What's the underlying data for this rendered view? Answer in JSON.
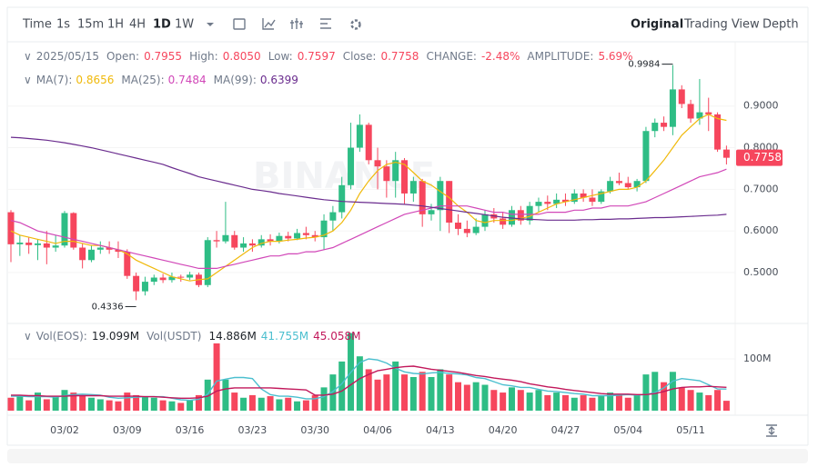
{
  "toolbar": {
    "intervals": [
      "Time",
      "1s",
      "15m",
      "1H",
      "4H",
      "1D",
      "1W"
    ],
    "views": [
      "Original",
      "Trading View",
      "Depth"
    ]
  },
  "chart_data": {
    "type": "candlestick",
    "watermark": "BINANCE",
    "legend": {
      "date": "2025/05/15",
      "items": [
        {
          "label": "Open:",
          "value": "0.7955"
        },
        {
          "label": "High:",
          "value": "0.8050"
        },
        {
          "label": "Low:",
          "value": "0.7597"
        },
        {
          "label": "Close:",
          "value": "0.7758"
        },
        {
          "label": "CHANGE:",
          "value": "-2.48%"
        },
        {
          "label": "AMPLITUDE:",
          "value": "5.69%"
        }
      ]
    },
    "categories": [
      null,
      null,
      null,
      null,
      null,
      null,
      "03/02",
      null,
      null,
      null,
      null,
      null,
      null,
      "03/09",
      null,
      null,
      null,
      null,
      null,
      null,
      "03/16",
      null,
      null,
      null,
      null,
      null,
      null,
      "03/23",
      null,
      null,
      null,
      null,
      null,
      null,
      "03/30",
      null,
      null,
      null,
      null,
      null,
      null,
      "04/06",
      null,
      null,
      null,
      null,
      null,
      null,
      "04/13",
      null,
      null,
      null,
      null,
      null,
      null,
      "04/20",
      null,
      null,
      null,
      null,
      null,
      null,
      "04/27",
      null,
      null,
      null,
      null,
      null,
      null,
      "05/04",
      null,
      null,
      null,
      null,
      null,
      null,
      "05/11",
      null,
      null,
      null,
      null
    ],
    "open": [
      0.645,
      0.568,
      0.572,
      0.566,
      0.57,
      0.56,
      0.565,
      0.643,
      0.56,
      0.53,
      0.555,
      0.56,
      0.555,
      0.55,
      0.492,
      0.455,
      0.478,
      0.488,
      0.482,
      0.49,
      0.488,
      0.495,
      0.47,
      0.578,
      0.575,
      0.59,
      0.56,
      0.57,
      0.565,
      0.58,
      0.575,
      0.588,
      0.582,
      0.595,
      0.59,
      0.585,
      0.625,
      0.645,
      0.71,
      0.8,
      0.855,
      0.77,
      0.755,
      0.72,
      0.77,
      0.69,
      0.72,
      0.64,
      0.65,
      0.72,
      0.62,
      0.605,
      0.595,
      0.61,
      0.64,
      0.63,
      0.615,
      0.65,
      0.625,
      0.66,
      0.67,
      0.665,
      0.675,
      0.67,
      0.69,
      0.68,
      0.67,
      0.695,
      0.72,
      0.715,
      0.705,
      0.72,
      0.84,
      0.86,
      0.85,
      0.94,
      0.905,
      0.87,
      0.885,
      0.88,
      0.7955
    ],
    "high": [
      0.65,
      0.59,
      0.585,
      0.58,
      0.6,
      0.59,
      0.648,
      0.645,
      0.57,
      0.565,
      0.575,
      0.575,
      0.575,
      0.556,
      0.5,
      0.49,
      0.495,
      0.497,
      0.5,
      0.495,
      0.502,
      0.5,
      0.585,
      0.6,
      0.67,
      0.6,
      0.585,
      0.58,
      0.59,
      0.592,
      0.596,
      0.598,
      0.605,
      0.61,
      0.6,
      0.64,
      0.66,
      0.73,
      0.86,
      0.88,
      0.86,
      0.8,
      0.77,
      0.79,
      0.775,
      0.73,
      0.725,
      0.665,
      0.73,
      0.72,
      0.64,
      0.625,
      0.63,
      0.65,
      0.655,
      0.645,
      0.66,
      0.66,
      0.67,
      0.68,
      0.685,
      0.69,
      0.69,
      0.7,
      0.7,
      0.7,
      0.7,
      0.73,
      0.74,
      0.73,
      0.725,
      0.85,
      0.87,
      0.875,
      0.9984,
      0.95,
      0.915,
      0.965,
      0.92,
      0.885,
      0.805
    ],
    "low": [
      0.525,
      0.54,
      0.545,
      0.53,
      0.52,
      0.55,
      0.56,
      0.555,
      0.51,
      0.525,
      0.545,
      0.545,
      0.535,
      0.485,
      0.4336,
      0.445,
      0.47,
      0.475,
      0.476,
      0.478,
      0.482,
      0.465,
      0.465,
      0.56,
      0.57,
      0.555,
      0.55,
      0.55,
      0.56,
      0.565,
      0.57,
      0.575,
      0.578,
      0.58,
      0.575,
      0.555,
      0.6,
      0.63,
      0.7,
      0.79,
      0.76,
      0.7,
      0.68,
      0.68,
      0.665,
      0.67,
      0.61,
      0.625,
      0.6,
      0.595,
      0.59,
      0.585,
      0.59,
      0.6,
      0.62,
      0.605,
      0.61,
      0.615,
      0.615,
      0.645,
      0.65,
      0.655,
      0.66,
      0.665,
      0.67,
      0.66,
      0.665,
      0.69,
      0.71,
      0.7,
      0.695,
      0.715,
      0.825,
      0.84,
      0.83,
      0.895,
      0.86,
      0.855,
      0.84,
      0.79,
      0.7597
    ],
    "close": [
      0.568,
      0.572,
      0.566,
      0.57,
      0.56,
      0.565,
      0.643,
      0.56,
      0.53,
      0.555,
      0.56,
      0.555,
      0.55,
      0.492,
      0.455,
      0.478,
      0.488,
      0.482,
      0.49,
      0.488,
      0.495,
      0.47,
      0.578,
      0.575,
      0.59,
      0.56,
      0.57,
      0.565,
      0.58,
      0.575,
      0.588,
      0.582,
      0.595,
      0.59,
      0.585,
      0.625,
      0.645,
      0.71,
      0.8,
      0.855,
      0.77,
      0.755,
      0.72,
      0.77,
      0.69,
      0.72,
      0.64,
      0.65,
      0.72,
      0.62,
      0.605,
      0.595,
      0.61,
      0.64,
      0.63,
      0.615,
      0.65,
      0.625,
      0.66,
      0.67,
      0.665,
      0.675,
      0.67,
      0.69,
      0.68,
      0.67,
      0.695,
      0.72,
      0.715,
      0.705,
      0.72,
      0.84,
      0.86,
      0.85,
      0.94,
      0.905,
      0.87,
      0.885,
      0.88,
      0.7955,
      0.7758
    ],
    "up_color": "#2ebd85",
    "down_color": "#f6465d",
    "series": [
      {
        "name": "MA(7):",
        "color": "#f0b90b",
        "values": [
          0.6,
          0.59,
          0.585,
          0.58,
          0.575,
          0.57,
          0.575,
          0.575,
          0.57,
          0.565,
          0.565,
          0.56,
          0.555,
          0.545,
          0.53,
          0.52,
          0.51,
          0.5,
          0.49,
          0.485,
          0.48,
          0.483,
          0.485,
          0.5,
          0.515,
          0.53,
          0.545,
          0.56,
          0.57,
          0.575,
          0.575,
          0.578,
          0.58,
          0.583,
          0.585,
          0.59,
          0.6,
          0.62,
          0.65,
          0.69,
          0.72,
          0.745,
          0.76,
          0.765,
          0.76,
          0.74,
          0.72,
          0.71,
          0.695,
          0.68,
          0.66,
          0.645,
          0.625,
          0.62,
          0.625,
          0.625,
          0.625,
          0.63,
          0.635,
          0.645,
          0.655,
          0.665,
          0.67,
          0.675,
          0.68,
          0.685,
          0.69,
          0.695,
          0.7,
          0.7,
          0.705,
          0.72,
          0.745,
          0.77,
          0.8,
          0.83,
          0.85,
          0.87,
          0.88,
          0.87,
          0.8656
        ]
      },
      {
        "name": "MA(25):",
        "color": "#d147b8",
        "values": [
          0.625,
          0.62,
          0.61,
          0.6,
          0.595,
          0.59,
          0.585,
          0.58,
          0.575,
          0.57,
          0.565,
          0.56,
          0.555,
          0.55,
          0.545,
          0.54,
          0.535,
          0.53,
          0.525,
          0.52,
          0.515,
          0.51,
          0.51,
          0.51,
          0.515,
          0.52,
          0.525,
          0.53,
          0.535,
          0.54,
          0.54,
          0.545,
          0.545,
          0.55,
          0.55,
          0.555,
          0.56,
          0.57,
          0.58,
          0.59,
          0.6,
          0.61,
          0.62,
          0.63,
          0.64,
          0.645,
          0.65,
          0.655,
          0.66,
          0.66,
          0.66,
          0.66,
          0.655,
          0.65,
          0.645,
          0.645,
          0.64,
          0.64,
          0.64,
          0.64,
          0.645,
          0.645,
          0.645,
          0.65,
          0.65,
          0.655,
          0.655,
          0.66,
          0.66,
          0.66,
          0.665,
          0.67,
          0.68,
          0.69,
          0.7,
          0.71,
          0.72,
          0.73,
          0.735,
          0.74,
          0.7484
        ]
      },
      {
        "name": "MA(99):",
        "color": "#6a2c8e",
        "values": [
          0.825,
          0.824,
          0.822,
          0.82,
          0.818,
          0.815,
          0.812,
          0.808,
          0.804,
          0.8,
          0.795,
          0.79,
          0.785,
          0.78,
          0.775,
          0.77,
          0.765,
          0.76,
          0.752,
          0.745,
          0.738,
          0.73,
          0.725,
          0.72,
          0.715,
          0.71,
          0.705,
          0.7,
          0.697,
          0.694,
          0.69,
          0.687,
          0.684,
          0.681,
          0.678,
          0.675,
          0.673,
          0.671,
          0.67,
          0.669,
          0.668,
          0.667,
          0.666,
          0.665,
          0.664,
          0.662,
          0.66,
          0.657,
          0.654,
          0.651,
          0.648,
          0.645,
          0.642,
          0.639,
          0.636,
          0.633,
          0.631,
          0.629,
          0.628,
          0.627,
          0.626,
          0.626,
          0.626,
          0.626,
          0.627,
          0.627,
          0.628,
          0.628,
          0.629,
          0.629,
          0.63,
          0.631,
          0.632,
          0.632,
          0.633,
          0.634,
          0.635,
          0.636,
          0.637,
          0.638,
          0.6399
        ]
      }
    ],
    "ylim": [
      0.38,
      1.05
    ],
    "yticks": [
      {
        "value": 0.5,
        "label": "0.5000"
      },
      {
        "value": 0.6,
        "label": "0.6000"
      },
      {
        "value": 0.7,
        "label": "0.7000"
      },
      {
        "value": 0.8,
        "label": "0.8000"
      },
      {
        "value": 0.9,
        "label": "0.9000"
      }
    ],
    "annotations": [
      "0.9984",
      "0.4336"
    ],
    "volume": {
      "name": "Vol(EOS):",
      "value_label": "19.099M",
      "usdt_name": "Vol(USDT)",
      "usdt_label": "14.886M",
      "values": [
        25,
        30,
        20,
        35,
        22,
        28,
        40,
        35,
        30,
        25,
        22,
        20,
        18,
        35,
        30,
        28,
        25,
        20,
        18,
        15,
        20,
        30,
        60,
        130,
        60,
        35,
        25,
        30,
        25,
        28,
        22,
        25,
        18,
        20,
        30,
        45,
        70,
        95,
        150,
        105,
        80,
        60,
        70,
        95,
        70,
        65,
        75,
        65,
        80,
        70,
        55,
        50,
        55,
        50,
        40,
        35,
        45,
        40,
        35,
        40,
        30,
        35,
        30,
        25,
        30,
        25,
        30,
        35,
        30,
        25,
        30,
        70,
        75,
        55,
        75,
        45,
        40,
        35,
        30,
        40,
        19.099
      ],
      "ylim": [
        0,
        158
      ],
      "yticks": [
        {
          "value": 100,
          "label": "100M"
        }
      ],
      "series": [
        {
          "color": "#4bbfcf",
          "value_label": "41.755M",
          "values": [
            28,
            28,
            27,
            27,
            27,
            26,
            29,
            31,
            32,
            31,
            30,
            26,
            24,
            25,
            26,
            27,
            27,
            27,
            24,
            21,
            20,
            22,
            32,
            57,
            61,
            64,
            64,
            62,
            42,
            31,
            28,
            28,
            26,
            23,
            23,
            27,
            37,
            52,
            74,
            93,
            100,
            98,
            92,
            82,
            75,
            72,
            71,
            73,
            74,
            72,
            71,
            69,
            64,
            62,
            56,
            50,
            48,
            45,
            45,
            41,
            38,
            37,
            35,
            33,
            32,
            29,
            29,
            29,
            30,
            31,
            30,
            31,
            35,
            44,
            57,
            62,
            60,
            58,
            50,
            42,
            41.755
          ]
        },
        {
          "color": "#c2185b",
          "value_label": "45.058M",
          "values": [
            30,
            30,
            29,
            29,
            28,
            28,
            28,
            29,
            29,
            29,
            29,
            28,
            28,
            28,
            28,
            27,
            27,
            26,
            25,
            24,
            24,
            25,
            28,
            38,
            42,
            44,
            44,
            44,
            44,
            44,
            43,
            42,
            41,
            40,
            30,
            30,
            32,
            38,
            50,
            62,
            70,
            77,
            80,
            83,
            85,
            86,
            83,
            80,
            78,
            76,
            74,
            71,
            68,
            66,
            63,
            61,
            59,
            56,
            52,
            49,
            46,
            44,
            41,
            39,
            37,
            35,
            33,
            32,
            32,
            32,
            31,
            31,
            33,
            37,
            42,
            45,
            46,
            46,
            47,
            46,
            45.058
          ]
        }
      ]
    }
  }
}
